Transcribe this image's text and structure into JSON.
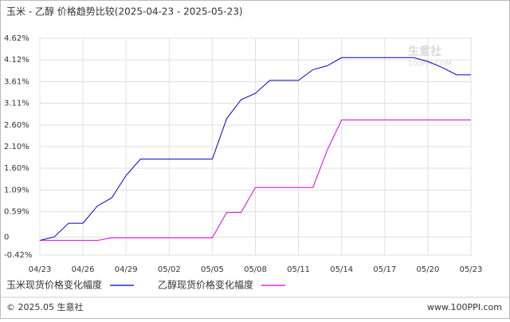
{
  "chart_data": {
    "type": "line",
    "title": "玉米 - 乙醇 价格趋势比较(2025-04-23 - 2025-05-23)",
    "categories": [
      "04/23",
      null,
      null,
      "04/26",
      null,
      null,
      "04/29",
      null,
      null,
      "05/02",
      null,
      null,
      "05/05",
      null,
      null,
      "05/08",
      null,
      null,
      "05/11",
      null,
      null,
      "05/14",
      null,
      null,
      "05/17",
      null,
      null,
      "05/20",
      null,
      null,
      "05/23"
    ],
    "series": [
      {
        "name": "玉米现货价格变化幅度",
        "color": "#0000cc",
        "values": [
          -0.08,
          0,
          0.32,
          0.32,
          0.72,
          0.91,
          1.43,
          1.81,
          1.81,
          1.81,
          1.81,
          1.81,
          1.81,
          2.75,
          3.19,
          3.34,
          3.64,
          3.64,
          3.64,
          3.89,
          3.98,
          4.17,
          4.17,
          4.17,
          4.17,
          4.17,
          4.17,
          4.08,
          3.94,
          3.77,
          3.77
        ]
      },
      {
        "name": "乙醇现货价格变化幅度",
        "color": "#dd00dd",
        "values": [
          -0.08,
          -0.08,
          -0.08,
          -0.08,
          -0.08,
          -0.02,
          -0.02,
          -0.02,
          -0.02,
          -0.02,
          -0.02,
          -0.02,
          -0.02,
          0.57,
          0.57,
          1.15,
          1.15,
          1.15,
          1.15,
          1.15,
          2.02,
          2.72,
          2.72,
          2.72,
          2.72,
          2.72,
          2.72,
          2.72,
          2.72,
          2.72,
          2.72
        ]
      }
    ],
    "ylim": [
      -0.42,
      4.62
    ],
    "yticks": [
      {
        "value": -0.42,
        "label": "-0.42%"
      },
      0,
      {
        "value": 0.59,
        "label": "0.59%"
      },
      {
        "value": 1.09,
        "label": "1.09%"
      },
      {
        "value": 1.6,
        "label": "1.60%"
      },
      {
        "value": 2.1,
        "label": "2.10%"
      },
      {
        "value": 2.6,
        "label": "2.60%"
      },
      {
        "value": 3.11,
        "label": "3.11%"
      },
      {
        "value": 3.61,
        "label": "3.61%"
      },
      {
        "value": 4.12,
        "label": "4.12%"
      },
      {
        "value": 4.62,
        "label": "4.62%"
      }
    ],
    "grid": true
  },
  "watermark": {
    "name": "生意社",
    "site": "100PPI.COM"
  },
  "footer": {
    "left": "© 2025.05 生意社",
    "right": "www.100PPI.com"
  }
}
